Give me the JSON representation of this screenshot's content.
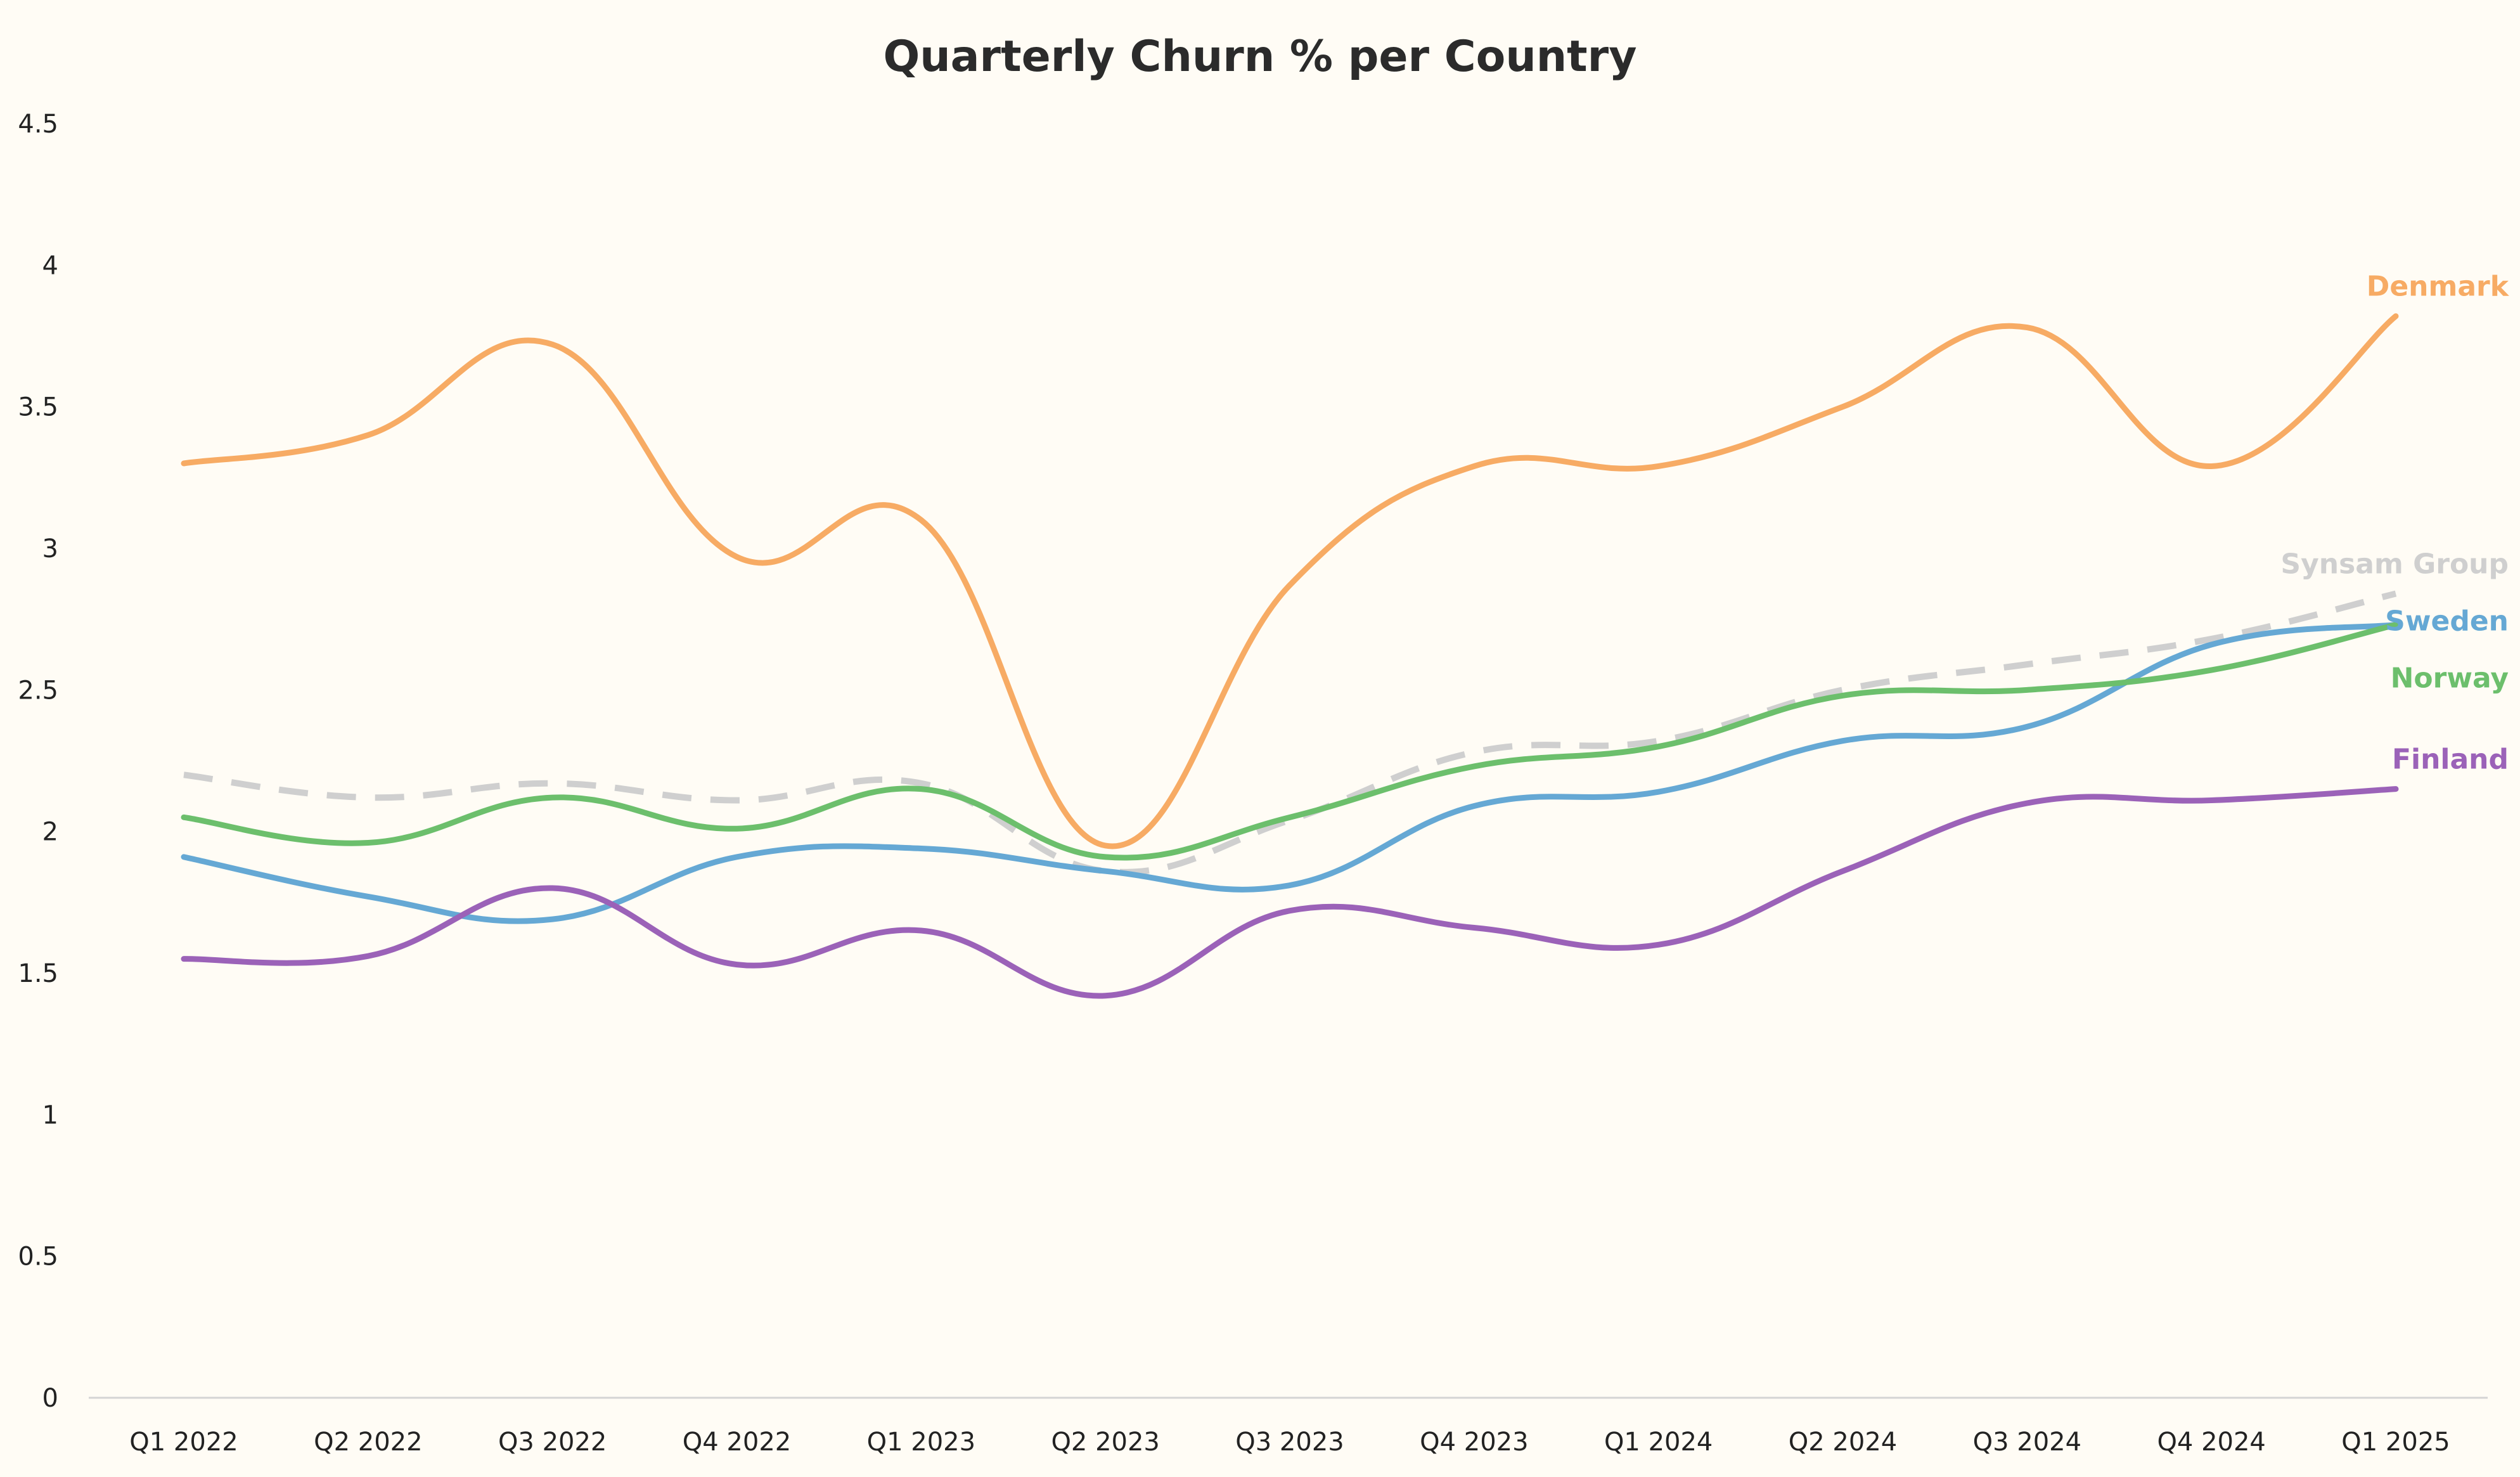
{
  "chart_data": {
    "type": "line",
    "title": "Quarterly Churn % per Country",
    "xlabel": "",
    "ylabel": "",
    "categories": [
      "Q1 2022",
      "Q2 2022",
      "Q3 2022",
      "Q4 2022",
      "Q1 2023",
      "Q2 2023",
      "Q3 2023",
      "Q4 2023",
      "Q1 2024",
      "Q2 2024",
      "Q3 2024",
      "Q4 2024",
      "Q1 2025"
    ],
    "ylim": [
      0,
      4.5
    ],
    "yticks": [
      "0",
      "0.5",
      "1",
      "1.5",
      "2",
      "2.5",
      "3",
      "3.5",
      "4",
      "4.5"
    ],
    "grid": false,
    "legend": "direct-labels-right",
    "series": [
      {
        "name": "Denmark",
        "color": "#f7ab64",
        "dashed": false,
        "values": [
          3.3,
          3.4,
          3.72,
          2.97,
          3.1,
          1.95,
          2.87,
          3.29,
          3.29,
          3.5,
          3.78,
          3.29,
          3.82
        ]
      },
      {
        "name": "Synsam Group",
        "color": "#cfcfcf",
        "dashed": true,
        "values": [
          2.2,
          2.12,
          2.17,
          2.11,
          2.17,
          1.86,
          2.04,
          2.28,
          2.32,
          2.5,
          2.59,
          2.68,
          2.84
        ]
      },
      {
        "name": "Sweden",
        "color": "#65a8d4",
        "dashed": false,
        "values": [
          1.91,
          1.77,
          1.69,
          1.91,
          1.94,
          1.86,
          1.81,
          2.09,
          2.14,
          2.32,
          2.37,
          2.66,
          2.73
        ]
      },
      {
        "name": "Norway",
        "color": "#6cbf6c",
        "dashed": false,
        "values": [
          2.05,
          1.96,
          2.12,
          2.01,
          2.15,
          1.91,
          2.05,
          2.23,
          2.3,
          2.48,
          2.5,
          2.57,
          2.73
        ]
      },
      {
        "name": "Finland",
        "color": "#9b62b8",
        "dashed": false,
        "values": [
          1.55,
          1.56,
          1.8,
          1.53,
          1.65,
          1.42,
          1.72,
          1.66,
          1.6,
          1.86,
          2.1,
          2.11,
          2.15
        ]
      }
    ]
  }
}
